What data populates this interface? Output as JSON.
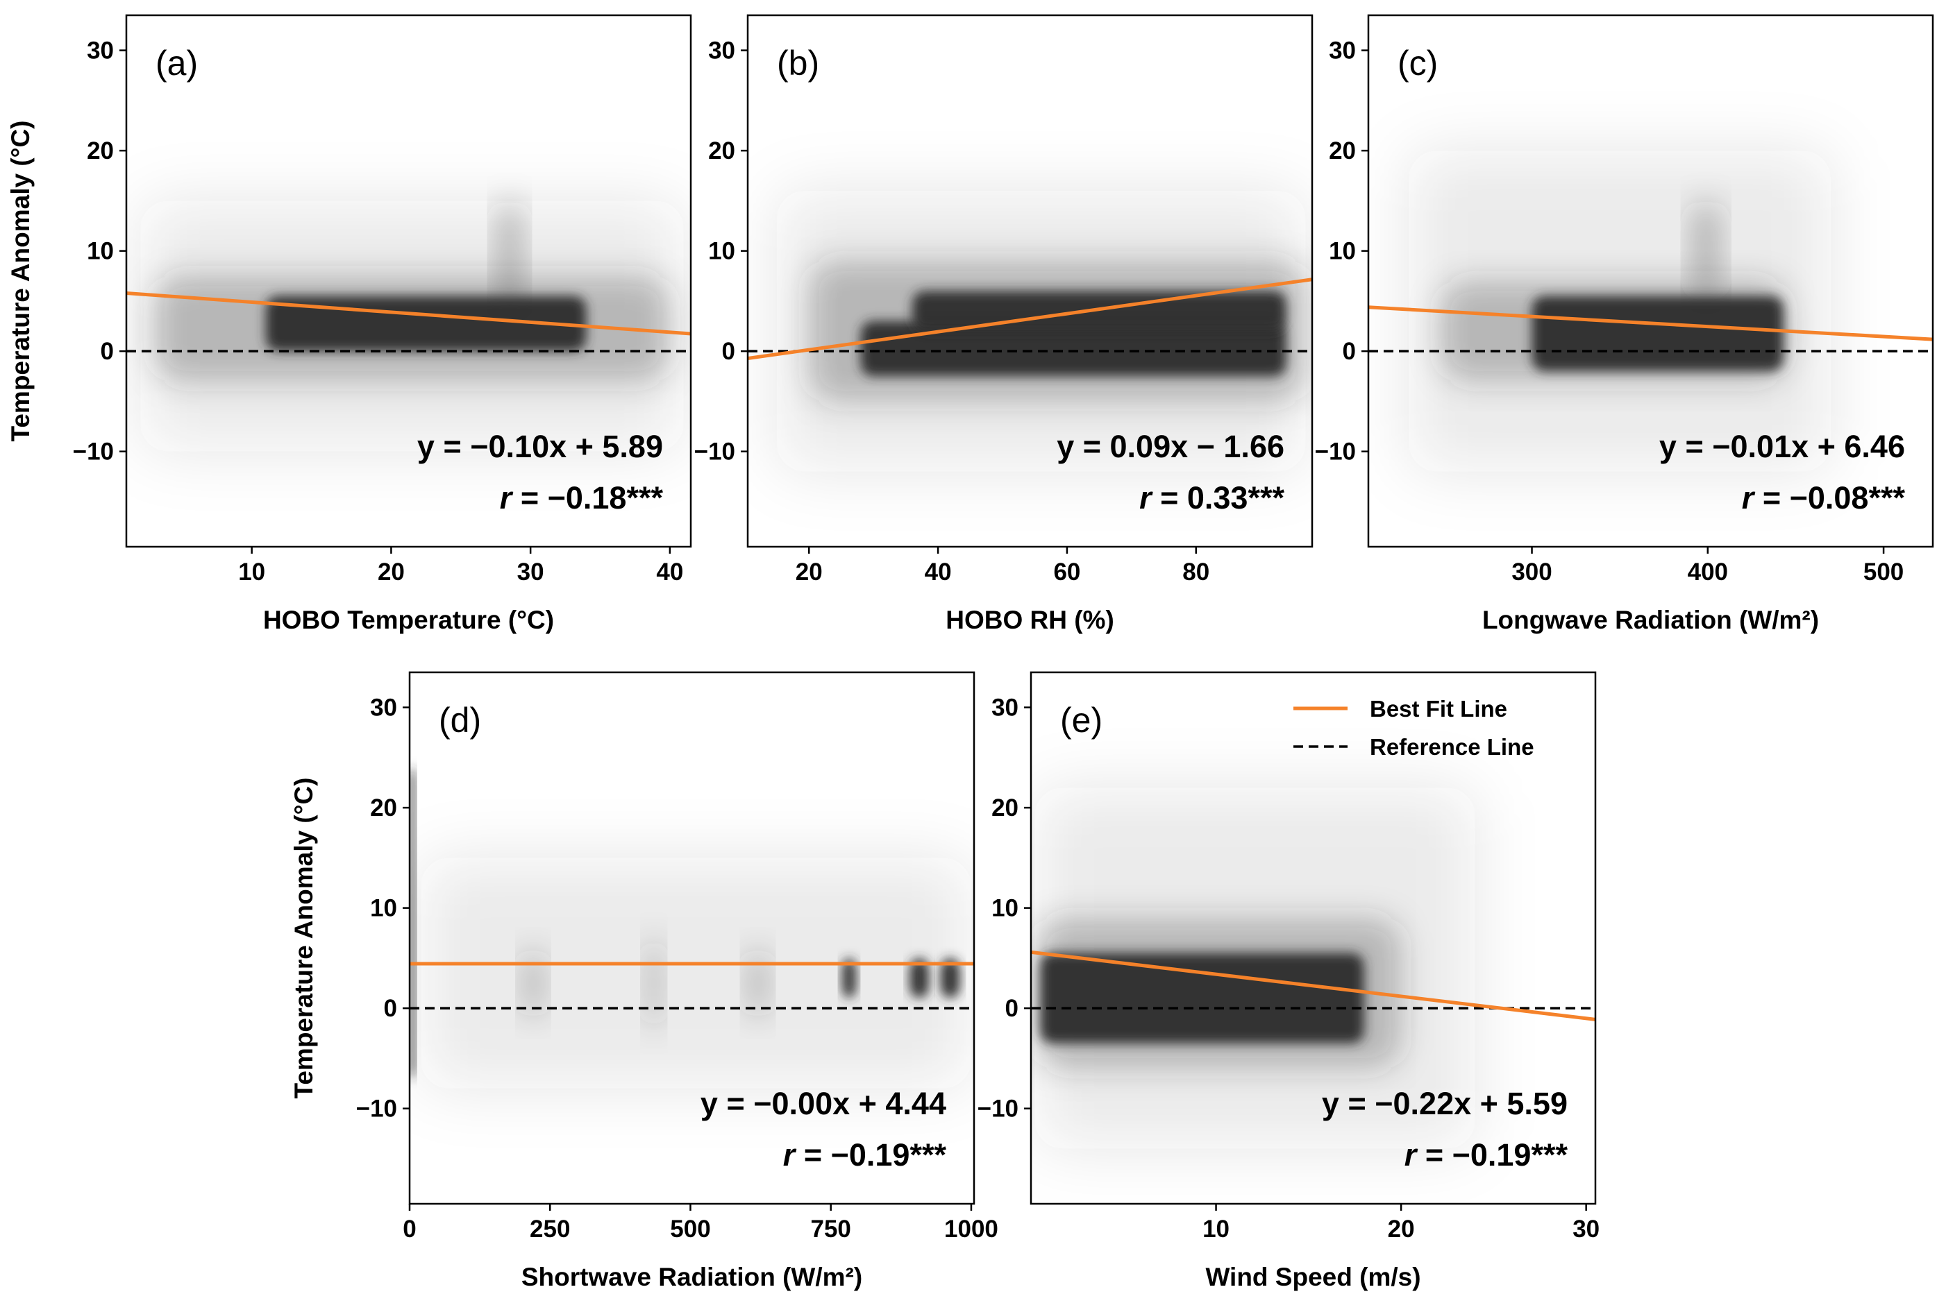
{
  "colors": {
    "fit": "#F5822A",
    "reference": "#000000",
    "density": "#2b2b2b",
    "frame": "#000000"
  },
  "chart_data": [
    {
      "type": "scatter",
      "panel_label": "(a)",
      "xlabel": "HOBO Temperature (°C)",
      "ylabel": "Temperature Anomaly (°C)",
      "xlim": [
        1,
        41.5
      ],
      "ylim": [
        -19.5,
        33.5
      ],
      "xticks": [
        10,
        20,
        30,
        40
      ],
      "yticks": [
        -10,
        0,
        10,
        20,
        30
      ],
      "fit": {
        "slope": -0.1,
        "intercept": 5.89
      },
      "equation": "y = −0.10x + 5.89",
      "r_label": "r",
      "r_value": " = −0.18***",
      "density_blobs": [
        {
          "x": [
            11,
            34
          ],
          "y": [
            0,
            5.5
          ],
          "level": "core"
        },
        {
          "x": [
            3,
            40
          ],
          "y": [
            -3,
            7.5
          ],
          "level": "halo"
        },
        {
          "x": [
            2,
            41
          ],
          "y": [
            -10,
            15
          ],
          "level": "fringe"
        },
        {
          "x": [
            27.5,
            29.5
          ],
          "y": [
            4,
            15
          ],
          "level": "halo"
        }
      ]
    },
    {
      "type": "scatter",
      "panel_label": "(b)",
      "xlabel": "HOBO RH (%)",
      "ylabel": "",
      "xlim": [
        10.5,
        98
      ],
      "ylim": [
        -19.5,
        33.5
      ],
      "xticks": [
        20,
        40,
        60,
        80
      ],
      "yticks": [
        -10,
        0,
        10,
        20,
        30
      ],
      "fit": {
        "slope": 0.09,
        "intercept": -1.66
      },
      "equation": "y = 0.09x − 1.66",
      "r_label": "r",
      "r_value": " = 0.33***",
      "density_blobs": [
        {
          "x": [
            28,
            94
          ],
          "y": [
            -2.5,
            3
          ],
          "level": "core"
        },
        {
          "x": [
            36,
            94
          ],
          "y": [
            2,
            6
          ],
          "level": "core"
        },
        {
          "x": [
            20,
            97
          ],
          "y": [
            -5,
            9
          ],
          "level": "halo"
        },
        {
          "x": [
            15,
            97
          ],
          "y": [
            -12,
            16
          ],
          "level": "fringe"
        }
      ]
    },
    {
      "type": "scatter",
      "panel_label": "(c)",
      "xlabel": "Longwave Radiation (W/m²)",
      "ylabel": "",
      "xlim": [
        207,
        528
      ],
      "ylim": [
        -19.5,
        33.5
      ],
      "xticks": [
        300,
        400,
        500
      ],
      "yticks": [
        -10,
        0,
        10,
        20,
        30
      ],
      "fit": {
        "slope": -0.01,
        "intercept": 6.46
      },
      "equation": "y = −0.01x + 6.46",
      "r_label": "r",
      "r_value": " = −0.08***",
      "density_blobs": [
        {
          "x": [
            300,
            443
          ],
          "y": [
            -2,
            5.5
          ],
          "level": "core"
        },
        {
          "x": [
            248,
            445
          ],
          "y": [
            -3,
            7
          ],
          "level": "halo"
        },
        {
          "x": [
            390,
            408
          ],
          "y": [
            5,
            15
          ],
          "level": "halo"
        },
        {
          "x": [
            230,
            470
          ],
          "y": [
            -12,
            20
          ],
          "level": "fringe"
        }
      ]
    },
    {
      "type": "scatter",
      "panel_label": "(d)",
      "xlabel": "Shortwave Radiation (W/m²)",
      "ylabel": "Temperature Anomaly (°C)",
      "xlim": [
        0,
        1005
      ],
      "ylim": [
        -19.5,
        33.5
      ],
      "xticks": [
        0,
        250,
        500,
        750,
        1000
      ],
      "yticks": [
        -10,
        0,
        10,
        20,
        30
      ],
      "fit": {
        "slope": -0.0,
        "intercept": 4.44
      },
      "equation": "y = −0.00x + 4.44",
      "r_label": "r",
      "r_value": " = −0.19***",
      "density_blobs": [
        {
          "x": [
            0,
            10
          ],
          "y": [
            -7,
            24
          ],
          "level": "core"
        },
        {
          "x": [
            770,
            795
          ],
          "y": [
            1,
            5
          ],
          "level": "core"
        },
        {
          "x": [
            890,
            925
          ],
          "y": [
            1,
            5
          ],
          "level": "core"
        },
        {
          "x": [
            945,
            980
          ],
          "y": [
            1,
            5
          ],
          "level": "core"
        },
        {
          "x": [
            200,
            240
          ],
          "y": [
            -1,
            6
          ],
          "level": "halo"
        },
        {
          "x": [
            420,
            450
          ],
          "y": [
            -2,
            7
          ],
          "level": "halo"
        },
        {
          "x": [
            600,
            640
          ],
          "y": [
            -1,
            6
          ],
          "level": "halo"
        },
        {
          "x": [
            20,
            1000
          ],
          "y": [
            -8,
            15
          ],
          "level": "fringe"
        }
      ]
    },
    {
      "type": "scatter",
      "panel_label": "(e)",
      "xlabel": "Wind Speed (m/s)",
      "ylabel": "",
      "xlim": [
        0,
        30.5
      ],
      "ylim": [
        -19.5,
        33.5
      ],
      "xticks": [
        10,
        20,
        30
      ],
      "yticks": [
        -10,
        0,
        10,
        20,
        30
      ],
      "fit": {
        "slope": -0.22,
        "intercept": 5.59
      },
      "equation": "y = −0.22x + 5.59",
      "r_label": "r",
      "r_value": " = −0.19***",
      "density_blobs": [
        {
          "x": [
            0.5,
            18
          ],
          "y": [
            -3.5,
            5.5
          ],
          "level": "core"
        },
        {
          "x": [
            0.3,
            20
          ],
          "y": [
            -6,
            9
          ],
          "level": "halo"
        },
        {
          "x": [
            0.2,
            24
          ],
          "y": [
            -14,
            22
          ],
          "level": "fringe"
        }
      ],
      "legend": {
        "position": "top-right",
        "fit_label": "Best Fit Line",
        "reference_label": "Reference Line"
      }
    }
  ]
}
